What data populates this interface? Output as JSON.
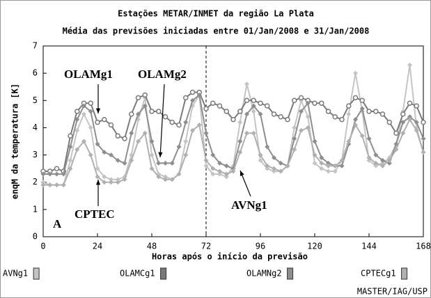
{
  "chart_data": {
    "type": "line",
    "title": "Estações METAR/INMET da região La Plata",
    "subtitle": "Média das previsões iniciadas entre 01/Jan/2008 e 31/Jan/2008",
    "xlabel": "Horas após o início da previsão",
    "ylabel": "enqM da temperatura [K]",
    "xlim": [
      0,
      168
    ],
    "ylim": [
      0,
      7
    ],
    "xticks": [
      0,
      24,
      48,
      72,
      96,
      120,
      144,
      168
    ],
    "yticks": [
      0,
      1,
      2,
      3,
      4,
      5,
      6,
      7
    ],
    "vline_x": 72,
    "x": [
      0,
      3,
      6,
      9,
      12,
      15,
      18,
      21,
      24,
      27,
      30,
      33,
      36,
      39,
      42,
      45,
      48,
      51,
      54,
      57,
      60,
      63,
      66,
      69,
      72,
      75,
      78,
      81,
      84,
      87,
      90,
      93,
      96,
      99,
      102,
      105,
      108,
      111,
      114,
      117,
      120,
      123,
      126,
      129,
      132,
      135,
      138,
      141,
      144,
      147,
      150,
      153,
      156,
      159,
      162,
      165,
      168
    ],
    "series": [
      {
        "name": "AVNg1",
        "color": "#c4c4c4",
        "marker": "diamond",
        "values": [
          2.0,
          1.9,
          1.9,
          1.9,
          2.8,
          3.9,
          4.5,
          4.0,
          2.5,
          2.2,
          2.1,
          2.1,
          2.2,
          3.0,
          4.3,
          5.1,
          3.0,
          2.3,
          2.2,
          2.1,
          2.3,
          3.5,
          4.8,
          5.2,
          2.6,
          2.3,
          2.3,
          2.2,
          2.6,
          4.2,
          5.6,
          4.6,
          2.8,
          2.5,
          2.4,
          2.4,
          2.6,
          4.0,
          5.0,
          4.4,
          2.7,
          2.5,
          2.4,
          2.4,
          2.8,
          4.5,
          6.0,
          4.6,
          2.8,
          2.6,
          2.7,
          2.9,
          3.4,
          4.6,
          6.3,
          4.0,
          3.1
        ]
      },
      {
        "name": "OLAMCg1",
        "color": "#7a7a7a",
        "marker": "circle",
        "values": [
          2.4,
          2.4,
          2.5,
          2.4,
          3.7,
          4.6,
          4.9,
          4.9,
          4.2,
          4.3,
          4.1,
          3.7,
          3.6,
          4.5,
          5.1,
          5.2,
          4.6,
          4.6,
          4.4,
          4.2,
          4.1,
          5.1,
          5.3,
          5.3,
          4.7,
          4.9,
          4.8,
          4.6,
          4.3,
          4.6,
          5.0,
          5.0,
          4.9,
          4.8,
          4.5,
          4.4,
          4.3,
          5.0,
          5.1,
          5.0,
          4.9,
          4.9,
          4.6,
          4.4,
          4.3,
          4.8,
          5.1,
          5.0,
          4.6,
          4.6,
          4.5,
          4.2,
          3.8,
          4.5,
          4.9,
          4.8,
          4.2
        ]
      },
      {
        "name": "OLAMNg2",
        "color": "#8e8e8e",
        "marker": "diamond",
        "values": [
          2.3,
          2.3,
          2.3,
          2.3,
          3.3,
          4.3,
          4.8,
          4.6,
          3.4,
          3.1,
          3.0,
          2.8,
          2.7,
          3.8,
          4.5,
          4.8,
          3.5,
          2.7,
          2.7,
          2.7,
          3.3,
          4.2,
          5.0,
          5.2,
          3.8,
          3.0,
          2.7,
          2.6,
          2.5,
          3.5,
          4.5,
          4.8,
          4.5,
          3.3,
          2.9,
          2.7,
          2.6,
          3.6,
          4.6,
          4.9,
          3.5,
          2.9,
          2.7,
          2.6,
          2.6,
          3.4,
          4.3,
          4.7,
          3.6,
          3.0,
          2.8,
          2.7,
          3.4,
          4.2,
          4.4,
          4.2,
          3.6
        ]
      },
      {
        "name": "CPTECg1",
        "color": "#b0b0b0",
        "marker": "diamond",
        "values": [
          1.9,
          1.9,
          1.9,
          1.9,
          2.5,
          3.2,
          3.5,
          3.0,
          2.2,
          2.0,
          2.0,
          2.0,
          2.1,
          2.8,
          3.5,
          3.8,
          2.5,
          2.2,
          2.1,
          2.1,
          2.3,
          3.0,
          3.9,
          4.1,
          2.8,
          2.5,
          2.4,
          2.3,
          2.4,
          3.1,
          3.8,
          3.8,
          3.0,
          2.6,
          2.5,
          2.4,
          2.6,
          3.2,
          3.9,
          4.0,
          3.0,
          2.7,
          2.6,
          2.6,
          2.8,
          3.5,
          4.1,
          3.7,
          2.9,
          2.7,
          2.6,
          2.8,
          3.2,
          3.8,
          4.3,
          3.9,
          3.1
        ]
      }
    ],
    "annotations": [
      "OLAMg1",
      "OLAMg2",
      "CPTEC",
      "AVNg1",
      "A"
    ],
    "credit": "MASTER/IAG/USP"
  }
}
